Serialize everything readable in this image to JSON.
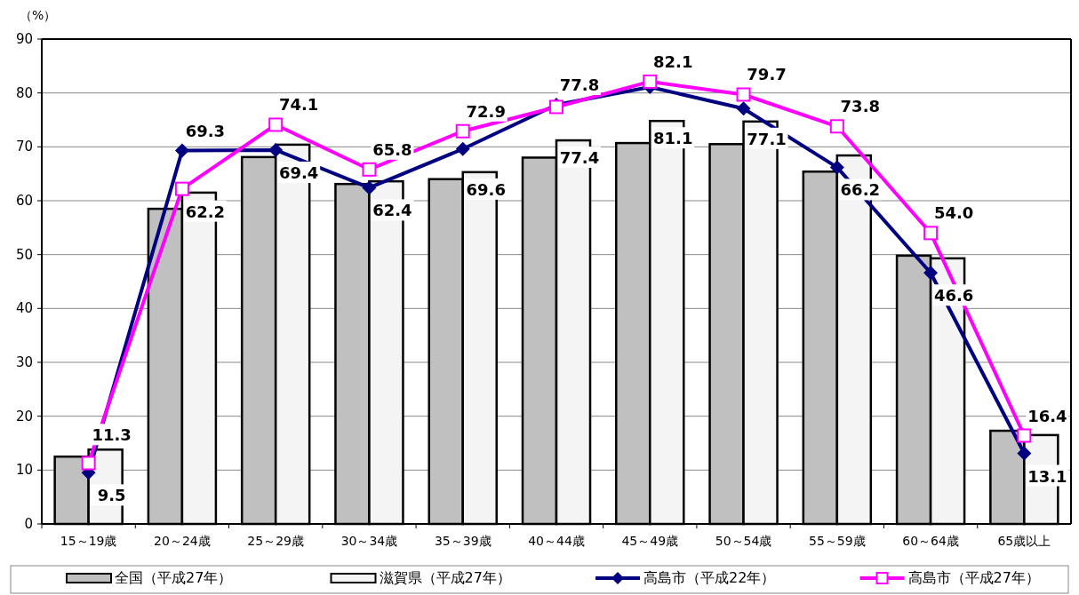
{
  "chart_data": {
    "type": "bar",
    "ylabel": "（%）",
    "categories": [
      "15～19歳",
      "20～24歳",
      "25～29歳",
      "30～34歳",
      "35～39歳",
      "40～44歳",
      "45～49歳",
      "50～54歳",
      "55～59歳",
      "60～64歳",
      "65歳以上"
    ],
    "series": [
      {
        "name": "全国（平成27年）",
        "color": "#c0c0c0",
        "values": [
          12.5,
          58.5,
          68.1,
          63.1,
          64.0,
          68.0,
          70.7,
          70.5,
          65.4,
          49.8,
          17.3
        ]
      },
      {
        "name": "滋賀県（平成27年）",
        "color": "#f4f4f4",
        "values": [
          13.8,
          61.5,
          70.4,
          63.6,
          65.3,
          71.2,
          74.8,
          74.7,
          68.4,
          49.3,
          16.5
        ]
      },
      {
        "name": "高島市（平成22年）",
        "type": "line",
        "color": "#000080",
        "marker": "diamond",
        "values": [
          9.5,
          69.3,
          69.4,
          62.4,
          69.6,
          77.8,
          81.1,
          77.1,
          66.2,
          46.6,
          13.1
        ],
        "value_labels": [
          "9.5",
          "69.3",
          "69.4",
          "62.4",
          "69.6",
          "77.8",
          "81.1",
          "77.1",
          "66.2",
          "46.6",
          "13.1"
        ]
      },
      {
        "name": "高島市（平成27年）",
        "type": "line",
        "color": "#ff00ff",
        "marker": "square",
        "values": [
          11.3,
          62.2,
          74.1,
          65.8,
          72.9,
          77.4,
          82.1,
          79.7,
          73.8,
          54.0,
          16.4
        ],
        "value_labels": [
          "11.3",
          "62.2",
          "74.1",
          "65.8",
          "72.9",
          "77.4",
          "82.1",
          "79.7",
          "73.8",
          "54.0",
          "16.4"
        ]
      }
    ],
    "ylim": [
      0,
      90
    ],
    "yticks": [
      0,
      10,
      20,
      30,
      40,
      50,
      60,
      70,
      80,
      90
    ],
    "grid": "y",
    "legend": "bottom"
  }
}
